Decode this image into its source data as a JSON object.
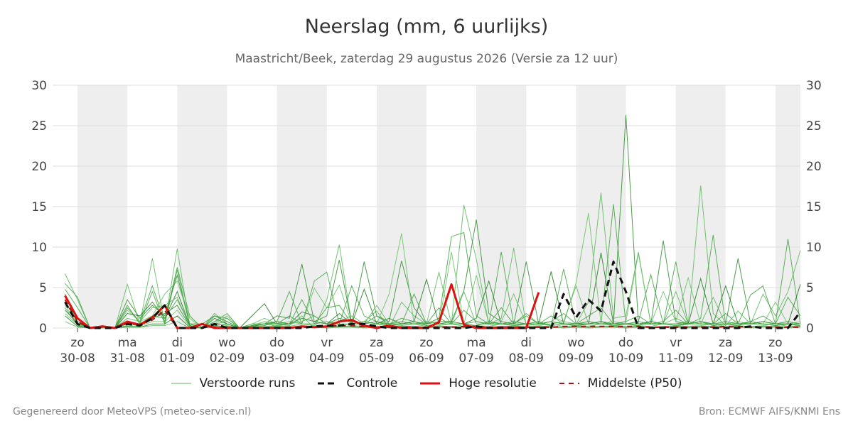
{
  "header": {
    "title": "Neerslag (mm, 6 uurlijks)",
    "subtitle": "Maastricht/Beek, zaterdag 29 augustus 2026 (Versie za 12 uur)"
  },
  "footer": {
    "left": "Gegenereerd door MeteoVPS (meteo-service.nl)",
    "right": "Bron: ECMWF AIFS/KNMI Ens"
  },
  "chart_data": {
    "type": "line",
    "x_unit": "6-hourly steps starting 29-08 18 uur",
    "ylim": [
      0,
      30
    ],
    "y_ticks": [
      0,
      5,
      10,
      15,
      20,
      25,
      30
    ],
    "grid": true,
    "legend_position": "bottom",
    "x_ticks": [
      {
        "day": "zo",
        "date": "30-08",
        "x": 1
      },
      {
        "day": "ma",
        "date": "31-08",
        "x": 5
      },
      {
        "day": "di",
        "date": "01-09",
        "x": 9
      },
      {
        "day": "wo",
        "date": "02-09",
        "x": 13
      },
      {
        "day": "do",
        "date": "03-09",
        "x": 17
      },
      {
        "day": "vr",
        "date": "04-09",
        "x": 21
      },
      {
        "day": "za",
        "date": "05-09",
        "x": 25
      },
      {
        "day": "zo",
        "date": "06-09",
        "x": 29
      },
      {
        "day": "ma",
        "date": "07-09",
        "x": 33
      },
      {
        "day": "di",
        "date": "08-09",
        "x": 37
      },
      {
        "day": "wo",
        "date": "09-09",
        "x": 41
      },
      {
        "day": "do",
        "date": "10-09",
        "x": 45
      },
      {
        "day": "vr",
        "date": "11-09",
        "x": 49
      },
      {
        "day": "za",
        "date": "12-09",
        "x": 53
      },
      {
        "day": "zo",
        "date": "13-09",
        "x": 57
      }
    ],
    "shaded_bands": [
      [
        1,
        5
      ],
      [
        9,
        13
      ],
      [
        17,
        21
      ],
      [
        25,
        29
      ],
      [
        33,
        37
      ],
      [
        41,
        45
      ],
      [
        49,
        53
      ],
      [
        57,
        59
      ]
    ],
    "x_range": [
      -1,
      59
    ],
    "colors": {
      "ensemble": "#2ca02c",
      "control": "#111111",
      "hires": "#dd1111",
      "median": "#aa1111",
      "band": "#eeeeee",
      "grid": "#dddddd"
    },
    "series": [
      {
        "name": "Verstoorde runs",
        "style": "thin-green",
        "members": [
          [
            6.7,
            3.5,
            0,
            0.3,
            0,
            5.4,
            0.5,
            8.6,
            0.5,
            9.8,
            0.2,
            0,
            1.8,
            0.5,
            0,
            0.3,
            0.8,
            0.5,
            0.3,
            1.5,
            0,
            3.5,
            10.3,
            0.5,
            0.8,
            2.1,
            0,
            3.2,
            1.5,
            0.5,
            6.9,
            0.5,
            15.2,
            8.5,
            0.5,
            1.2,
            9.9,
            0.3,
            0.5,
            1.5,
            0.8,
            0.5,
            3.2,
            16.7,
            1.2,
            1.5,
            9.4,
            0.5,
            0.5,
            1.2,
            0.5,
            17.6,
            1.8,
            0.3,
            2.1,
            0.5,
            4.2,
            1.5,
            4.5,
            9.6
          ],
          [
            5.5,
            3.8,
            0,
            0.2,
            0,
            2.5,
            0.8,
            5.2,
            0.8,
            7.5,
            1.5,
            0,
            0.8,
            1.8,
            0,
            0.5,
            0.5,
            0.8,
            4.5,
            0.5,
            5.8,
            6.9,
            0.5,
            5.2,
            1.5,
            0.8,
            0.5,
            0.5,
            4.2,
            0.5,
            1.2,
            11.3,
            11.8,
            1.5,
            0.5,
            9.4,
            0.5,
            1.8,
            0.5,
            0.3,
            7.3,
            0.5,
            0.8,
            0.5,
            15.3,
            0.5,
            0.8,
            6.6,
            0.5,
            8.2,
            0.5,
            1.2,
            11.5,
            0.5,
            0.5,
            4.1,
            5.2,
            0.5,
            11.0,
            0.5
          ],
          [
            4.2,
            0.5,
            0,
            0.1,
            0,
            3.5,
            1.2,
            2.8,
            1.5,
            6.5,
            0.5,
            0.5,
            1.5,
            0.8,
            0,
            0.2,
            0.5,
            1.5,
            1.2,
            7.9,
            0.8,
            1.5,
            8.4,
            0.5,
            8.2,
            1.5,
            0.8,
            8.3,
            2.5,
            0.5,
            0.8,
            0.8,
            4.6,
            13.4,
            1.8,
            0.8,
            0.5,
            8.2,
            0.5,
            0.8,
            0.5,
            0.5,
            0.5,
            0.8,
            0.5,
            26.3,
            0.5,
            0.5,
            10.8,
            0.8,
            0.5,
            0.8,
            0.5,
            0.5,
            8.6,
            0.5,
            0.8,
            0.5,
            0.8,
            0.5
          ],
          [
            3.8,
            1.2,
            0,
            0.1,
            0,
            2.2,
            0.8,
            1.5,
            4.2,
            5.8,
            1.2,
            0,
            0.5,
            1.5,
            0,
            0.5,
            1.2,
            0.5,
            0.8,
            0.5,
            4.9,
            2.5,
            5.3,
            0.5,
            0.8,
            0.5,
            4.2,
            11.7,
            0.5,
            0.8,
            0.5,
            9.4,
            0.5,
            6.5,
            0.5,
            0.5,
            0.8,
            0.5,
            0.5,
            1.5,
            0.5,
            5.6,
            14.2,
            0.5,
            0.5,
            0.8,
            9.2,
            0.5,
            4.5,
            0.8,
            6.2,
            0.5,
            0.5,
            0.5,
            0.8,
            0.5,
            0.5,
            3.2,
            0.5,
            0.8
          ],
          [
            3.2,
            0.8,
            0,
            0.2,
            0,
            1.8,
            1.5,
            3.2,
            1.2,
            4.5,
            0.3,
            0,
            1.2,
            0.5,
            0,
            1.5,
            3.0,
            0.5,
            0.5,
            2.0,
            1.5,
            0.5,
            1.8,
            0.5,
            4.8,
            0.5,
            1.2,
            0.5,
            0.8,
            6.0,
            0.5,
            0.5,
            0.5,
            1.2,
            5.8,
            0.5,
            0.5,
            0.5,
            0.5,
            7.0,
            0.5,
            0.5,
            0.5,
            9.3,
            0.5,
            0.5,
            0.5,
            0.8,
            0.5,
            0.5,
            0.5,
            6.1,
            0.5,
            5.2,
            0.5,
            0.5,
            0.8,
            0.5,
            0.5,
            5.4
          ],
          [
            2.8,
            0.5,
            0,
            0.3,
            0,
            1.2,
            0.8,
            2.5,
            2.8,
            3.8,
            0.2,
            0,
            0.8,
            1.2,
            0,
            0.5,
            0.5,
            0.3,
            0.5,
            0.8,
            1.5,
            0.5,
            0.8,
            1.5,
            0.5,
            2.8,
            0.5,
            0.5,
            0.5,
            0.8,
            0.5,
            0.5,
            4.5,
            0.5,
            0.5,
            0.8,
            4.2,
            0.5,
            0.5,
            0.5,
            0.8,
            5.2,
            0.5,
            0.5,
            0.8,
            0.5,
            0.5,
            0.5,
            0.5,
            4.5,
            0.5,
            0.5,
            3.8,
            0.5,
            0.5,
            0.5,
            0.5,
            0.5,
            0.5,
            0.5
          ],
          [
            2.5,
            0.3,
            0,
            0.2,
            0,
            0.8,
            0.5,
            1.5,
            1.2,
            3.5,
            0.5,
            0,
            0.5,
            0.8,
            0,
            0.3,
            0.5,
            0.5,
            1.5,
            0.5,
            0.5,
            0.8,
            0.5,
            0.5,
            0.8,
            0.5,
            0.5,
            0.8,
            0.5,
            0.5,
            1.2,
            0.5,
            0.5,
            0.8,
            0.5,
            0.5,
            0.8,
            0.5,
            0.5,
            0.8,
            0.5,
            0.5,
            0.8,
            0.5,
            0.5,
            0.5,
            0.8,
            0.5,
            0.5,
            0.5,
            0.8,
            0.5,
            0.5,
            0.8,
            0.5,
            0.5,
            0.8,
            0.5,
            0.5,
            0.5
          ],
          [
            2.2,
            0.6,
            0,
            0.1,
            0,
            0.5,
            0.3,
            1.2,
            1.8,
            2.8,
            0.3,
            0,
            0.3,
            0.5,
            0,
            0.2,
            0.3,
            0.8,
            0.5,
            1.2,
            0.8,
            0.5,
            1.2,
            0.8,
            0.5,
            0.8,
            0.3,
            0.5,
            0.8,
            0.3,
            0.5,
            0.8,
            0.5,
            0.3,
            0.8,
            0.5,
            0.3,
            0.5,
            0.8,
            0.3,
            0.5,
            0.3,
            0.5,
            0.8,
            0.3,
            0.5,
            0.3,
            0.8,
            0.5,
            0.3,
            0.5,
            0.8,
            0.3,
            0.5,
            0.3,
            0.8,
            0.5,
            0.3,
            0.5,
            0.3
          ],
          [
            1.8,
            0.4,
            0,
            0.2,
            0,
            0.3,
            0.2,
            0.8,
            0.8,
            2.2,
            0.2,
            0,
            0.5,
            0.3,
            0,
            0.1,
            0.2,
            0.3,
            0.2,
            0.5,
            0.3,
            0.2,
            0.5,
            0.3,
            0.2,
            0.5,
            0.2,
            0.3,
            0.5,
            0.2,
            0.3,
            0.5,
            0.2,
            0.3,
            0.2,
            0.5,
            0.3,
            0.2,
            0.3,
            0.5,
            0.2,
            0.3,
            0.2,
            0.5,
            0.3,
            0.2,
            0.3,
            0.2,
            0.5,
            0.3,
            0.2,
            0.3,
            0.5,
            0.2,
            0.3,
            0.2,
            0.3,
            0.5,
            0.2,
            0.3
          ],
          [
            1.5,
            0.2,
            0,
            0.1,
            0,
            0.2,
            0.1,
            0.5,
            0.5,
            1.5,
            0.1,
            0,
            0.2,
            0.2,
            0,
            0.1,
            0.1,
            0.2,
            0.1,
            0.2,
            0.2,
            0.1,
            0.2,
            0.2,
            0.1,
            0.2,
            0.1,
            0.2,
            0.2,
            0.1,
            0.2,
            0.2,
            0.1,
            0.2,
            0.1,
            0.2,
            0.2,
            0.1,
            0.2,
            0.2,
            0.1,
            0.2,
            0.1,
            0.2,
            0.2,
            0.1,
            0.2,
            0.1,
            0.2,
            0.2,
            0.1,
            0.2,
            0.2,
            0.1,
            0.2,
            0.1,
            0.2,
            0.2,
            0.1,
            0.2
          ],
          [
            0.8,
            0.1,
            0,
            0,
            0,
            0.1,
            0.1,
            0.3,
            0.3,
            0.8,
            0,
            0,
            0.1,
            0.1,
            0,
            0,
            0.1,
            0.1,
            0,
            0.1,
            0.1,
            0,
            0.1,
            0.1,
            0,
            0.1,
            0,
            0.1,
            0.1,
            0,
            0.1,
            0.1,
            0,
            0.1,
            0,
            0.1,
            0.1,
            0,
            0.1,
            0.1,
            0,
            0.1,
            0,
            0.1,
            0.1,
            0,
            0.1,
            0,
            0.1,
            0.1,
            0,
            0.1,
            0.1,
            0,
            0.1,
            0,
            0.1,
            0.1,
            0,
            0.1
          ],
          [
            4.8,
            2.5,
            0,
            0.2,
            0,
            2.8,
            0.5,
            4.5,
            0.5,
            7.2,
            0.3,
            0,
            1.5,
            1.2,
            0,
            0.3,
            0.5,
            0.8,
            0.5,
            3.5,
            0.5,
            2.5,
            2.8,
            0.5,
            0.5,
            1.5,
            0.5,
            1.2,
            0.8,
            0.5,
            2.5,
            0.5,
            2.2,
            0.8,
            0.5,
            2.5,
            0.5,
            1.5,
            0.5,
            0.8,
            1.8,
            0.5,
            1.5,
            2.5,
            0.5,
            0.8,
            1.5,
            0.5,
            0.8,
            2.2,
            0.5,
            0.8,
            0.5,
            1.8,
            0.5,
            0.8,
            1.5,
            0.5,
            3.8,
            1.5
          ]
        ]
      },
      {
        "name": "Controle",
        "style": "dashed-black",
        "values": [
          3.2,
          0.5,
          0,
          0,
          0,
          0.5,
          0.3,
          1.2,
          2.8,
          0,
          0,
          0,
          0.5,
          0,
          0,
          0,
          0,
          0,
          0,
          0,
          0.2,
          0.3,
          0.3,
          0.5,
          0.5,
          0.2,
          0,
          0,
          0,
          0,
          0,
          0,
          0,
          0.2,
          0,
          0,
          0,
          0,
          0,
          0,
          4.2,
          1.3,
          3.5,
          2.1,
          8.2,
          4.5,
          0,
          0,
          0,
          0,
          0,
          0,
          0,
          0,
          0,
          0.2,
          0,
          0,
          0,
          2.0
        ]
      },
      {
        "name": "Hoge resolutie",
        "style": "solid-red",
        "values": [
          4.0,
          1.2,
          0,
          0.2,
          0,
          0.8,
          0.4,
          1.3,
          2.8,
          0,
          0,
          0.5,
          0,
          0,
          0,
          0,
          0,
          0,
          0,
          0.2,
          0.1,
          0.2,
          0.8,
          1.0,
          0.3,
          0,
          0.3,
          0,
          0,
          0,
          0.7,
          5.4,
          0.4,
          0,
          0,
          0,
          0,
          0,
          4.4
        ]
      },
      {
        "name": "Middelste (P50)",
        "style": "dashed-darkred",
        "values": [
          3.5,
          0.8,
          0,
          0.1,
          0,
          0.6,
          0.4,
          1.0,
          2.2,
          0,
          0,
          0.2,
          0.1,
          0,
          0,
          0,
          0,
          0,
          0.1,
          0.1,
          0.1,
          0.2,
          0.3,
          0.3,
          0.2,
          0.1,
          0.1,
          0.1,
          0.1,
          0.1,
          0.1,
          0.1,
          0.2,
          0.2,
          0.1,
          0.1,
          0.1,
          0.1,
          0.1,
          0.1,
          0.2,
          0.2,
          0.2,
          0.2,
          0.2,
          0.2,
          0.2,
          0.1,
          0.1,
          0.1,
          0.1,
          0.1,
          0.1,
          0.2,
          0.2,
          0.1,
          0.1,
          0.1,
          0.1,
          0.1
        ]
      }
    ]
  },
  "legend": {
    "items": [
      {
        "label": "Verstoorde runs"
      },
      {
        "label": "Controle"
      },
      {
        "label": "Hoge resolutie"
      },
      {
        "label": "Middelste (P50)"
      }
    ]
  }
}
